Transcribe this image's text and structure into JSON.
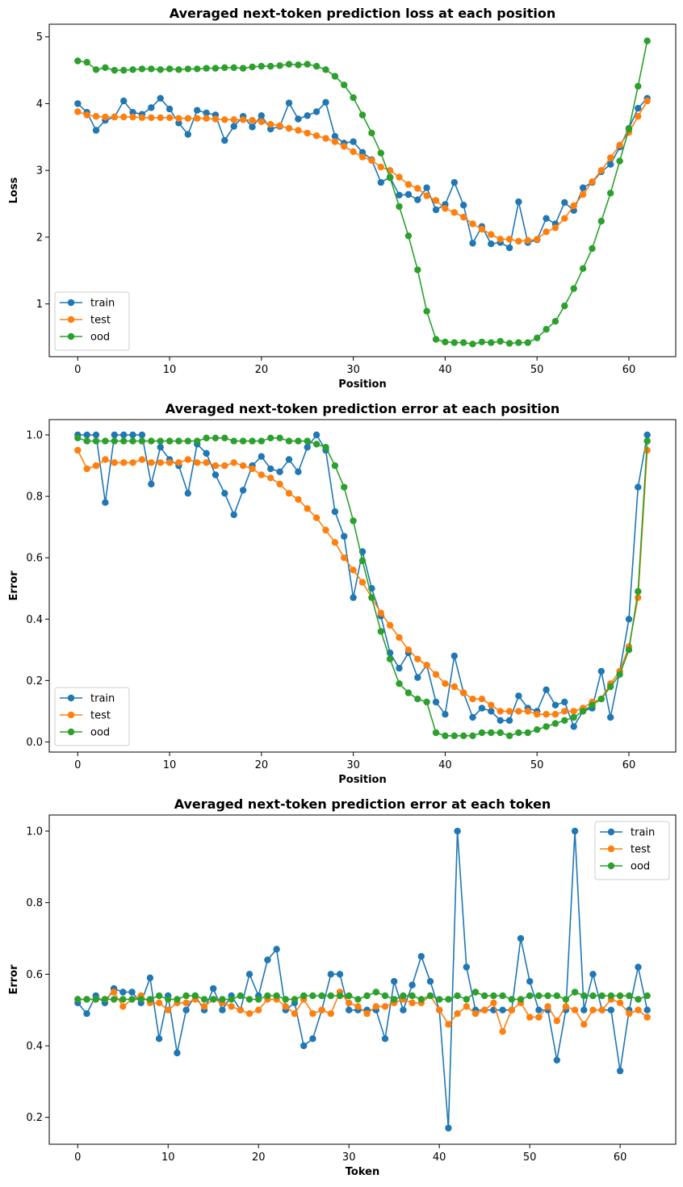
{
  "colors": {
    "train": "#1f77b4",
    "test": "#ff7f0e",
    "ood": "#2ca02c"
  },
  "chart_data": [
    {
      "type": "line",
      "title": "Averaged next-token prediction loss at each position",
      "xlabel": "Position",
      "ylabel": "Loss",
      "xlim": [
        -3.1,
        65.1
      ],
      "ylim": [
        0.21,
        5.19
      ],
      "xticks": [
        0,
        10,
        20,
        30,
        40,
        50,
        60
      ],
      "yticks": [
        1,
        2,
        3,
        4,
        5
      ],
      "tick_format": 0,
      "legend": "lower-left",
      "x_start": 0,
      "series": [
        {
          "name": "train",
          "color": "#1f77b4",
          "values": [
            4.0,
            3.87,
            3.6,
            3.75,
            3.8,
            4.04,
            3.87,
            3.84,
            3.94,
            4.08,
            3.92,
            3.71,
            3.54,
            3.9,
            3.86,
            3.83,
            3.45,
            3.66,
            3.81,
            3.65,
            3.82,
            3.62,
            3.66,
            4.01,
            3.77,
            3.82,
            3.88,
            4.02,
            3.51,
            3.41,
            3.43,
            3.27,
            3.16,
            2.82,
            2.9,
            2.63,
            2.64,
            2.56,
            2.74,
            2.41,
            2.49,
            2.82,
            2.48,
            1.91,
            2.16,
            1.9,
            1.92,
            1.84,
            2.53,
            1.92,
            1.96,
            2.28,
            2.2,
            2.52,
            2.4,
            2.74,
            2.82,
            2.98,
            3.09,
            3.35,
            3.63,
            3.93,
            4.08
          ]
        },
        {
          "name": "test",
          "color": "#ff7f0e",
          "values": [
            3.88,
            3.83,
            3.81,
            3.8,
            3.8,
            3.8,
            3.8,
            3.79,
            3.79,
            3.79,
            3.79,
            3.78,
            3.78,
            3.78,
            3.78,
            3.77,
            3.76,
            3.76,
            3.76,
            3.75,
            3.73,
            3.69,
            3.67,
            3.63,
            3.6,
            3.56,
            3.52,
            3.48,
            3.43,
            3.36,
            3.28,
            3.2,
            3.15,
            3.05,
            3.0,
            2.9,
            2.79,
            2.73,
            2.62,
            2.55,
            2.43,
            2.37,
            2.3,
            2.2,
            2.12,
            2.04,
            1.97,
            1.97,
            1.94,
            1.95,
            1.97,
            2.08,
            2.14,
            2.28,
            2.47,
            2.64,
            2.83,
            3.0,
            3.19,
            3.38,
            3.57,
            3.81,
            4.04
          ]
        },
        {
          "name": "ood",
          "color": "#2ca02c",
          "values": [
            4.64,
            4.62,
            4.51,
            4.54,
            4.5,
            4.5,
            4.51,
            4.52,
            4.52,
            4.51,
            4.52,
            4.51,
            4.52,
            4.52,
            4.53,
            4.53,
            4.54,
            4.54,
            4.53,
            4.55,
            4.56,
            4.56,
            4.57,
            4.59,
            4.58,
            4.59,
            4.56,
            4.51,
            4.41,
            4.28,
            4.09,
            3.83,
            3.56,
            3.26,
            2.89,
            2.46,
            2.02,
            1.51,
            0.89,
            0.47,
            0.43,
            0.42,
            0.42,
            0.4,
            0.43,
            0.42,
            0.44,
            0.41,
            0.42,
            0.42,
            0.49,
            0.62,
            0.74,
            0.97,
            1.23,
            1.53,
            1.83,
            2.24,
            2.66,
            3.14,
            3.62,
            4.26,
            4.94
          ]
        }
      ]
    },
    {
      "type": "line",
      "title": "Averaged next-token prediction error at each position",
      "xlabel": "Position",
      "ylabel": "Error",
      "xlim": [
        -3.1,
        65.1
      ],
      "ylim": [
        -0.033,
        1.05
      ],
      "xticks": [
        0,
        10,
        20,
        30,
        40,
        50,
        60
      ],
      "yticks": [
        0.0,
        0.2,
        0.4,
        0.6,
        0.8,
        1.0
      ],
      "tick_format": 1,
      "legend": "lower-left",
      "x_start": 0,
      "series": [
        {
          "name": "train",
          "color": "#1f77b4",
          "values": [
            1.0,
            1.0,
            1.0,
            0.78,
            1.0,
            1.0,
            1.0,
            1.0,
            0.84,
            0.96,
            0.92,
            0.9,
            0.81,
            0.97,
            0.94,
            0.87,
            0.81,
            0.74,
            0.82,
            0.9,
            0.93,
            0.89,
            0.88,
            0.92,
            0.88,
            0.96,
            1.0,
            0.95,
            0.75,
            0.67,
            0.47,
            0.62,
            0.5,
            0.41,
            0.29,
            0.24,
            0.29,
            0.21,
            0.25,
            0.13,
            0.09,
            0.28,
            0.16,
            0.08,
            0.11,
            0.1,
            0.07,
            0.07,
            0.15,
            0.11,
            0.1,
            0.17,
            0.12,
            0.13,
            0.05,
            0.1,
            0.11,
            0.23,
            0.08,
            0.23,
            0.4,
            0.83,
            1.0
          ]
        },
        {
          "name": "test",
          "color": "#ff7f0e",
          "values": [
            0.95,
            0.89,
            0.9,
            0.92,
            0.91,
            0.91,
            0.91,
            0.92,
            0.91,
            0.91,
            0.91,
            0.91,
            0.92,
            0.91,
            0.91,
            0.9,
            0.9,
            0.91,
            0.9,
            0.89,
            0.87,
            0.86,
            0.84,
            0.81,
            0.79,
            0.76,
            0.73,
            0.69,
            0.65,
            0.6,
            0.56,
            0.52,
            0.47,
            0.42,
            0.38,
            0.34,
            0.3,
            0.27,
            0.25,
            0.22,
            0.19,
            0.18,
            0.16,
            0.14,
            0.14,
            0.12,
            0.1,
            0.1,
            0.1,
            0.1,
            0.09,
            0.09,
            0.09,
            0.1,
            0.1,
            0.11,
            0.13,
            0.14,
            0.19,
            0.23,
            0.31,
            0.47,
            0.95
          ]
        },
        {
          "name": "ood",
          "color": "#2ca02c",
          "values": [
            0.99,
            0.98,
            0.98,
            0.98,
            0.98,
            0.98,
            0.98,
            0.98,
            0.98,
            0.98,
            0.98,
            0.98,
            0.98,
            0.98,
            0.99,
            0.99,
            0.99,
            0.98,
            0.98,
            0.98,
            0.98,
            0.99,
            0.99,
            0.98,
            0.98,
            0.98,
            0.97,
            0.96,
            0.9,
            0.83,
            0.72,
            0.59,
            0.47,
            0.36,
            0.27,
            0.19,
            0.16,
            0.14,
            0.13,
            0.03,
            0.02,
            0.02,
            0.02,
            0.02,
            0.03,
            0.03,
            0.03,
            0.02,
            0.03,
            0.03,
            0.04,
            0.05,
            0.06,
            0.07,
            0.08,
            0.1,
            0.12,
            0.14,
            0.18,
            0.22,
            0.3,
            0.49,
            0.98
          ]
        }
      ]
    },
    {
      "type": "line",
      "title": "Averaged next-token prediction error at each token",
      "xlabel": "Token",
      "ylabel": "Error",
      "xlim": [
        -3.15,
        66.15
      ],
      "ylim": [
        0.125,
        1.045
      ],
      "xticks": [
        0,
        10,
        20,
        30,
        40,
        50,
        60
      ],
      "yticks": [
        0.2,
        0.4,
        0.6,
        0.8,
        1.0
      ],
      "tick_format": 1,
      "legend": "upper-right",
      "x_start": 0,
      "series": [
        {
          "name": "train",
          "color": "#1f77b4",
          "values": [
            0.52,
            0.49,
            0.54,
            0.52,
            0.56,
            0.55,
            0.55,
            0.52,
            0.59,
            0.42,
            0.54,
            0.38,
            0.5,
            0.54,
            0.5,
            0.56,
            0.5,
            0.54,
            0.5,
            0.6,
            0.54,
            0.64,
            0.67,
            0.5,
            0.52,
            0.4,
            0.42,
            0.5,
            0.6,
            0.6,
            0.5,
            0.5,
            0.5,
            0.5,
            0.42,
            0.58,
            0.5,
            0.57,
            0.65,
            0.58,
            0.5,
            0.17,
            1.0,
            0.62,
            0.5,
            0.5,
            0.5,
            0.5,
            0.5,
            0.7,
            0.58,
            0.5,
            0.5,
            0.36,
            0.5,
            1.0,
            0.5,
            0.6,
            0.5,
            0.5,
            0.33,
            0.5,
            0.62,
            0.5
          ]
        },
        {
          "name": "test",
          "color": "#ff7f0e",
          "values": [
            0.53,
            0.53,
            0.53,
            0.53,
            0.55,
            0.51,
            0.53,
            0.54,
            0.52,
            0.52,
            0.5,
            0.52,
            0.52,
            0.53,
            0.51,
            0.53,
            0.52,
            0.51,
            0.5,
            0.49,
            0.5,
            0.53,
            0.53,
            0.51,
            0.49,
            0.53,
            0.49,
            0.5,
            0.49,
            0.55,
            0.52,
            0.51,
            0.49,
            0.51,
            0.51,
            0.52,
            0.53,
            0.52,
            0.52,
            0.54,
            0.5,
            0.46,
            0.49,
            0.51,
            0.49,
            0.5,
            0.52,
            0.44,
            0.5,
            0.52,
            0.48,
            0.48,
            0.51,
            0.47,
            0.51,
            0.5,
            0.46,
            0.5,
            0.5,
            0.53,
            0.52,
            0.49,
            0.5,
            0.48
          ]
        },
        {
          "name": "ood",
          "color": "#2ca02c",
          "values": [
            0.53,
            0.53,
            0.53,
            0.53,
            0.53,
            0.53,
            0.53,
            0.53,
            0.53,
            0.54,
            0.53,
            0.53,
            0.54,
            0.54,
            0.53,
            0.53,
            0.53,
            0.53,
            0.54,
            0.53,
            0.53,
            0.54,
            0.54,
            0.53,
            0.53,
            0.54,
            0.54,
            0.54,
            0.54,
            0.54,
            0.54,
            0.53,
            0.54,
            0.55,
            0.54,
            0.53,
            0.54,
            0.54,
            0.53,
            0.54,
            0.53,
            0.53,
            0.54,
            0.53,
            0.55,
            0.54,
            0.54,
            0.54,
            0.53,
            0.53,
            0.54,
            0.54,
            0.54,
            0.54,
            0.53,
            0.55,
            0.54,
            0.54,
            0.54,
            0.54,
            0.54,
            0.54,
            0.53,
            0.54
          ]
        }
      ]
    }
  ]
}
